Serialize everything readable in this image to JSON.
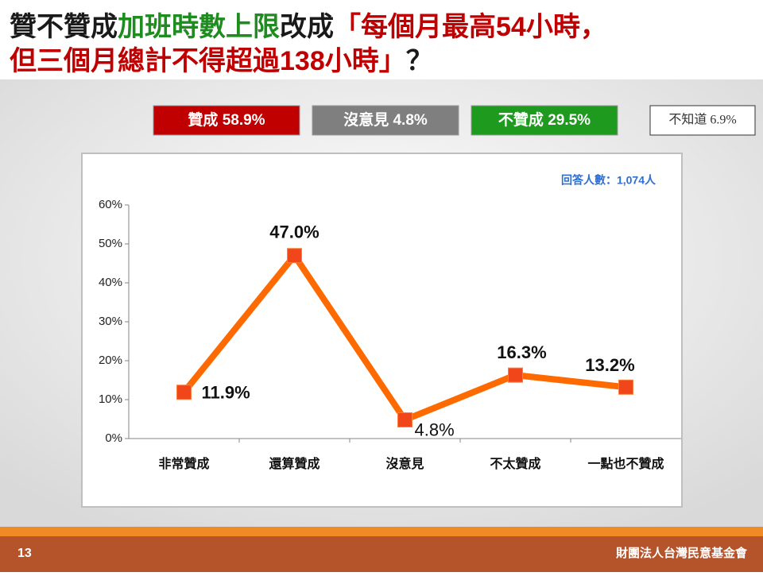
{
  "header": {
    "title_lines": [
      [
        {
          "text": "贊不贊成",
          "color": "#1a1a1a"
        },
        {
          "text": "加班時數上限",
          "color": "#1e8c1e"
        },
        {
          "text": "改成",
          "color": "#1a1a1a"
        },
        {
          "text": "「每個月最高54小時，",
          "color": "#c00000"
        }
      ],
      [
        {
          "text": "但三個月總計不得超過138小時」",
          "color": "#c00000"
        },
        {
          "text": "？",
          "color": "#1a1a1a"
        }
      ]
    ]
  },
  "summary": [
    {
      "text": "贊成 58.9%",
      "color": "#c00000"
    },
    {
      "text": "沒意見 4.8%",
      "color": "#7f7f7f"
    },
    {
      "text": "不贊成 29.5%",
      "color": "#1e9a1e"
    },
    {
      "text": "不知道 6.9%",
      "color": "#ffffff"
    }
  ],
  "chart_data": {
    "type": "line",
    "note": "回答人數：1,074人",
    "categories": [
      "非常贊成",
      "還算贊成",
      "沒意見",
      "不太贊成",
      "一點也不贊成"
    ],
    "values": [
      11.9,
      47.0,
      4.8,
      16.3,
      13.2
    ],
    "value_labels": [
      "11.9%",
      "47.0%",
      "4.8%",
      "16.3%",
      "13.2%"
    ],
    "color": "#ff6a00",
    "marker_color": "#f0461a",
    "ylim": [
      0,
      60
    ],
    "yticks": [
      {
        "value": 0,
        "label": "0%"
      },
      {
        "value": 10,
        "label": "10%"
      },
      {
        "value": 20,
        "label": "20%"
      },
      {
        "value": 30,
        "label": "30%"
      },
      {
        "value": 40,
        "label": "40%"
      },
      {
        "value": 50,
        "label": "50%"
      },
      {
        "value": 60,
        "label": "60%"
      }
    ],
    "grid": false
  },
  "footer": {
    "page": "13",
    "org": "財團法人台灣民意基金會"
  }
}
